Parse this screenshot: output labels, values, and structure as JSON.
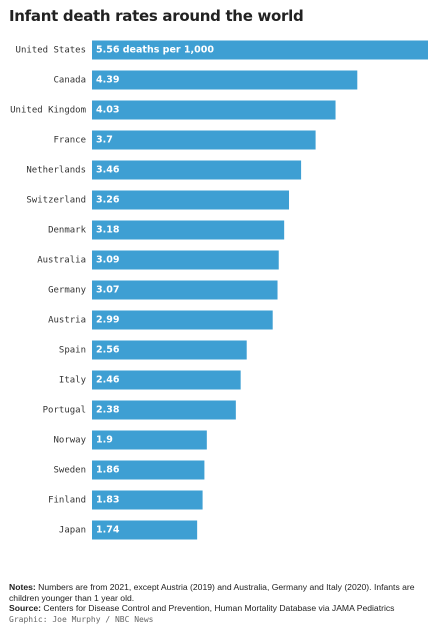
{
  "title": "Infant death rates around the world",
  "chart_data": {
    "type": "bar",
    "orientation": "horizontal",
    "title": "Infant death rates around the world",
    "categories": [
      "United States",
      "Canada",
      "United Kingdom",
      "France",
      "Netherlands",
      "Switzerland",
      "Denmark",
      "Australia",
      "Germany",
      "Austria",
      "Spain",
      "Italy",
      "Portugal",
      "Norway",
      "Sweden",
      "Finland",
      "Japan"
    ],
    "values": [
      5.56,
      4.39,
      4.03,
      3.7,
      3.46,
      3.26,
      3.18,
      3.09,
      3.07,
      2.99,
      2.56,
      2.46,
      2.38,
      1.9,
      1.86,
      1.83,
      1.74
    ],
    "value_labels": [
      "5.56 deaths per 1,000",
      "4.39",
      "4.03",
      "3.7",
      "3.46",
      "3.26",
      "3.18",
      "3.09",
      "3.07",
      "2.99",
      "2.56",
      "2.46",
      "2.38",
      "1.9",
      "1.86",
      "1.83",
      "1.74"
    ],
    "bar_color": "#3e9fd3",
    "xlim": [
      0,
      5.56
    ],
    "grid": false,
    "legend": "none"
  },
  "notes": {
    "label": "Notes:",
    "text": " Numbers are from 2021, except Austria (2019) and Australia, Germany and Italy (2020). Infants are children younger than 1 year old."
  },
  "source": {
    "label": "Source:",
    "text": " Centers for Disease Control and Prevention, Human Mortality Database via JAMA Pediatrics"
  },
  "credit": "Graphic: Joe Murphy / NBC News"
}
